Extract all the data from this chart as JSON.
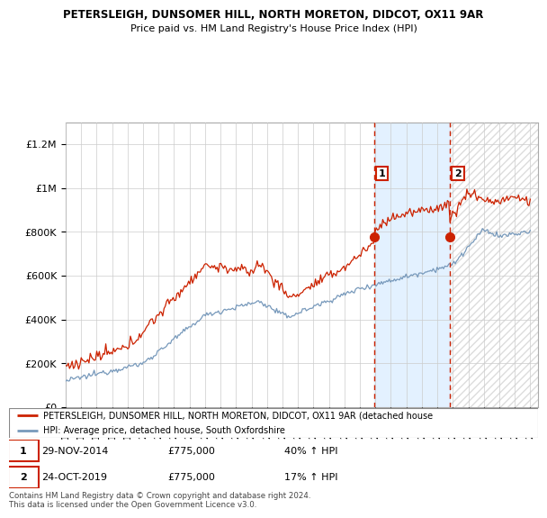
{
  "title1": "PETERSLEIGH, DUNSOMER HILL, NORTH MORETON, DIDCOT, OX11 9AR",
  "title2": "Price paid vs. HM Land Registry's House Price Index (HPI)",
  "legend_line1": "PETERSLEIGH, DUNSOMER HILL, NORTH MORETON, DIDCOT, OX11 9AR (detached house",
  "legend_line2": "HPI: Average price, detached house, South Oxfordshire",
  "annotation1_label": "1",
  "annotation1_date": "29-NOV-2014",
  "annotation1_price": "£775,000",
  "annotation1_hpi": "40% ↑ HPI",
  "annotation2_label": "2",
  "annotation2_date": "24-OCT-2019",
  "annotation2_price": "£775,000",
  "annotation2_hpi": "17% ↑ HPI",
  "footnote": "Contains HM Land Registry data © Crown copyright and database right 2024.\nThis data is licensed under the Open Government Licence v3.0.",
  "red_color": "#cc2200",
  "blue_color": "#7799bb",
  "vline_color": "#cc2200",
  "shaded_color": "#ddeeff",
  "ylim": [
    0,
    1300000
  ],
  "yticks": [
    0,
    200000,
    400000,
    600000,
    800000,
    1000000,
    1200000
  ],
  "ytick_labels": [
    "£0",
    "£200K",
    "£400K",
    "£600K",
    "£800K",
    "£1M",
    "£1.2M"
  ],
  "sale1_year": 2014.9,
  "sale1_price": 775000,
  "sale2_year": 2019.8,
  "sale2_price": 775000,
  "xmin": 1995,
  "xmax": 2025.5
}
